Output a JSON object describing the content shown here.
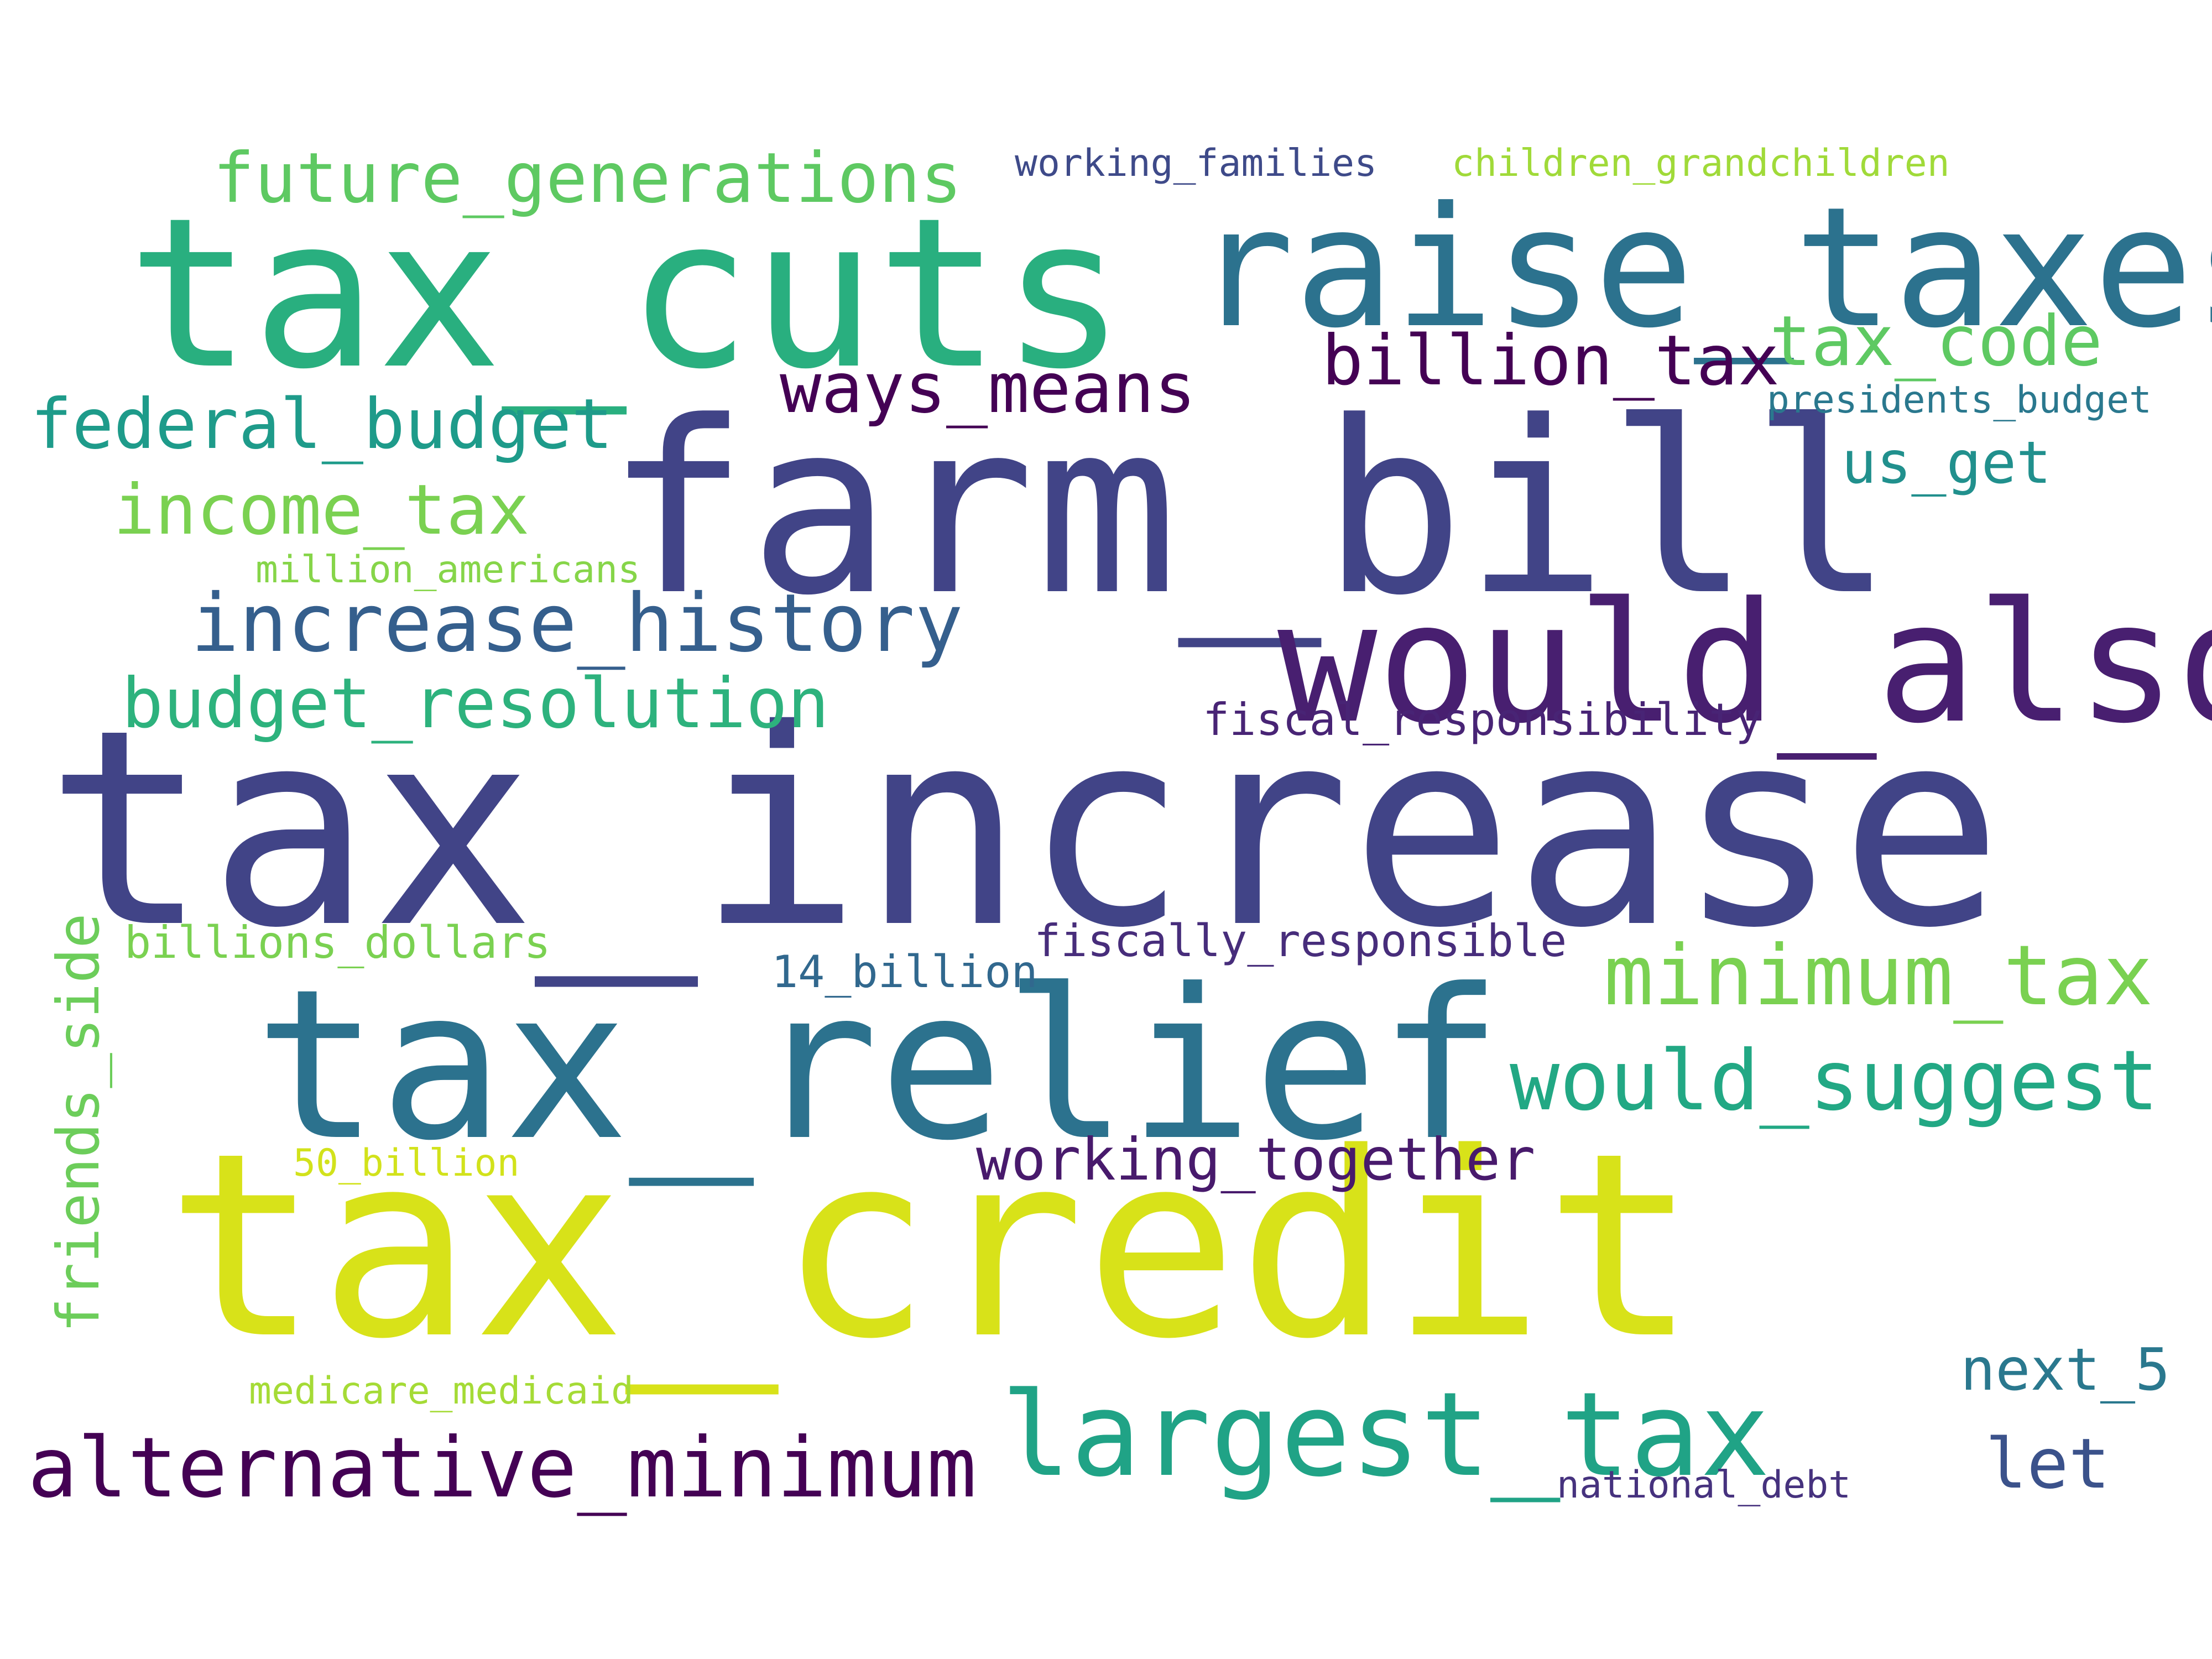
{
  "words": [
    {
      "text": "tax_increase",
      "color": "#414487"
    },
    {
      "text": "farm_bill",
      "color": "#414487"
    },
    {
      "text": "tax_credit",
      "color": "#d8e219"
    },
    {
      "text": "tax_cuts",
      "color": "#29af7f"
    },
    {
      "text": "tax_relief",
      "color": "#2c728e"
    },
    {
      "text": "raise_taxes",
      "color": "#2c728e"
    },
    {
      "text": "would_also",
      "color": "#481f70"
    },
    {
      "text": "largest_tax",
      "color": "#20a386"
    },
    {
      "text": "alternative_minimum",
      "color": "#440154"
    },
    {
      "text": "minimum_tax",
      "color": "#7ad151"
    },
    {
      "text": "would_suggest",
      "color": "#22a884"
    },
    {
      "text": "future_generations",
      "color": "#5ec962"
    },
    {
      "text": "increase_history",
      "color": "#355f8d"
    },
    {
      "text": "budget_resolution",
      "color": "#2db27d"
    },
    {
      "text": "federal_budget",
      "color": "#1e9b8a"
    },
    {
      "text": "billion_tax",
      "color": "#440154"
    },
    {
      "text": "ways_means",
      "color": "#440154"
    },
    {
      "text": "tax_code",
      "color": "#5ec962"
    },
    {
      "text": "income_tax",
      "color": "#7ad151"
    },
    {
      "text": "working_together",
      "color": "#481a6c"
    },
    {
      "text": "us_get",
      "color": "#21908d"
    },
    {
      "text": "let",
      "color": "#3b528b"
    },
    {
      "text": "next_5",
      "color": "#2a788e"
    },
    {
      "text": "friends_side",
      "color": "#6ccd5a"
    },
    {
      "text": "fiscal_responsibility",
      "color": "#482475"
    },
    {
      "text": "fiscally_responsible",
      "color": "#472d7b"
    },
    {
      "text": "14_billion",
      "color": "#31688e"
    },
    {
      "text": "billions_dollars",
      "color": "#7ad151"
    },
    {
      "text": "million_americans",
      "color": "#86d549"
    },
    {
      "text": "medicare_medicaid",
      "color": "#a5db36"
    },
    {
      "text": "50_billion",
      "color": "#d2e21b"
    },
    {
      "text": "working_families",
      "color": "#3e4a89"
    },
    {
      "text": "children_grandchildren",
      "color": "#a0da39"
    },
    {
      "text": "presidents_budget",
      "color": "#2a788e"
    },
    {
      "text": "national_debt",
      "color": "#46327e"
    }
  ]
}
